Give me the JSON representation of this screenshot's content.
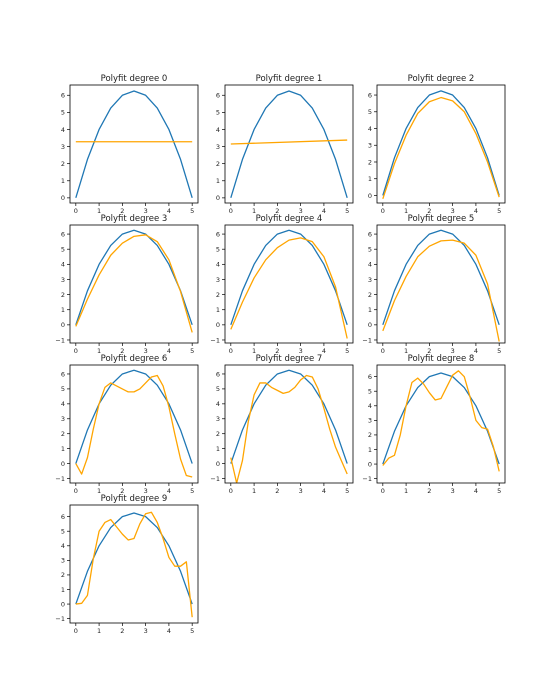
{
  "figure": {
    "line_colors": {
      "true": "#1f77b4",
      "fit": "#ffa500"
    }
  },
  "chart_data": [
    {
      "type": "line",
      "title": "Polyfit degree 0",
      "xticks": [
        "0",
        "1",
        "2",
        "3",
        "4",
        "5"
      ],
      "yticks": [
        "0",
        "1",
        "2",
        "3",
        "4",
        "5",
        "6"
      ],
      "xlim": [
        -0.25,
        5.25
      ],
      "ylim": [
        -0.3,
        6.6
      ],
      "series": [
        {
          "role": "true",
          "x": [
            0,
            0.5,
            1,
            1.5,
            2,
            2.5,
            3,
            3.5,
            4,
            4.5,
            5
          ],
          "y": [
            0,
            2.25,
            4,
            5.25,
            6,
            6.25,
            6,
            5.25,
            4,
            2.25,
            0
          ]
        },
        {
          "role": "fit",
          "x": [
            0,
            5
          ],
          "y": [
            3.28,
            3.28
          ]
        }
      ]
    },
    {
      "type": "line",
      "title": "Polyfit degree 1",
      "xticks": [
        "0",
        "1",
        "2",
        "3",
        "4",
        "5"
      ],
      "yticks": [
        "0",
        "1",
        "2",
        "3",
        "4",
        "5",
        "6"
      ],
      "xlim": [
        -0.25,
        5.25
      ],
      "ylim": [
        -0.3,
        6.6
      ],
      "series": [
        {
          "role": "true",
          "x": [
            0,
            0.5,
            1,
            1.5,
            2,
            2.5,
            3,
            3.5,
            4,
            4.5,
            5
          ],
          "y": [
            0,
            2.25,
            4,
            5.25,
            6,
            6.25,
            6,
            5.25,
            4,
            2.25,
            0
          ]
        },
        {
          "role": "fit",
          "x": [
            0,
            5
          ],
          "y": [
            3.15,
            3.38
          ]
        }
      ]
    },
    {
      "type": "line",
      "title": "Polyfit degree 2",
      "xticks": [
        "0",
        "1",
        "2",
        "3",
        "4",
        "5"
      ],
      "yticks": [
        "0",
        "1",
        "2",
        "3",
        "4",
        "5",
        "6"
      ],
      "xlim": [
        -0.25,
        5.25
      ],
      "ylim": [
        -0.45,
        6.6
      ],
      "series": [
        {
          "role": "true",
          "x": [
            0,
            0.5,
            1,
            1.5,
            2,
            2.5,
            3,
            3.5,
            4,
            4.5,
            5
          ],
          "y": [
            0,
            2.25,
            4,
            5.25,
            6,
            6.25,
            6,
            5.25,
            4,
            2.25,
            0
          ]
        },
        {
          "role": "fit",
          "x": [
            0,
            0.5,
            1,
            1.5,
            2,
            2.5,
            3,
            3.5,
            4,
            4.5,
            5
          ],
          "y": [
            -0.2,
            1.9,
            3.6,
            4.9,
            5.6,
            5.85,
            5.65,
            5.0,
            3.7,
            2.0,
            -0.1
          ]
        }
      ]
    },
    {
      "type": "line",
      "title": "Polyfit degree 3",
      "xticks": [
        "0",
        "1",
        "2",
        "3",
        "4",
        "5"
      ],
      "yticks": [
        "-1",
        "0",
        "1",
        "2",
        "3",
        "4",
        "5",
        "6"
      ],
      "xlim": [
        -0.25,
        5.25
      ],
      "ylim": [
        -1.2,
        6.6
      ],
      "series": [
        {
          "role": "true",
          "x": [
            0,
            0.5,
            1,
            1.5,
            2,
            2.5,
            3,
            3.5,
            4,
            4.5,
            5
          ],
          "y": [
            0,
            2.25,
            4,
            5.25,
            6,
            6.25,
            6,
            5.25,
            4,
            2.25,
            0
          ]
        },
        {
          "role": "fit",
          "x": [
            0,
            0.5,
            1,
            1.5,
            2,
            2.5,
            3,
            3.5,
            4,
            4.5,
            5
          ],
          "y": [
            -0.1,
            1.7,
            3.3,
            4.6,
            5.4,
            5.85,
            5.95,
            5.5,
            4.3,
            2.2,
            -0.5
          ]
        }
      ]
    },
    {
      "type": "line",
      "title": "Polyfit degree 4",
      "xticks": [
        "0",
        "1",
        "2",
        "3",
        "4",
        "5"
      ],
      "yticks": [
        "-1",
        "0",
        "1",
        "2",
        "3",
        "4",
        "5",
        "6"
      ],
      "xlim": [
        -0.25,
        5.25
      ],
      "ylim": [
        -1.2,
        6.6
      ],
      "series": [
        {
          "role": "true",
          "x": [
            0,
            0.5,
            1,
            1.5,
            2,
            2.5,
            3,
            3.5,
            4,
            4.5,
            5
          ],
          "y": [
            0,
            2.25,
            4,
            5.25,
            6,
            6.25,
            6,
            5.25,
            4,
            2.25,
            0
          ]
        },
        {
          "role": "fit",
          "x": [
            0,
            0.5,
            1,
            1.5,
            2,
            2.5,
            3,
            3.5,
            4,
            4.5,
            5
          ],
          "y": [
            -0.3,
            1.5,
            3.1,
            4.3,
            5.1,
            5.6,
            5.75,
            5.5,
            4.5,
            2.5,
            -0.9
          ]
        }
      ]
    },
    {
      "type": "line",
      "title": "Polyfit degree 5",
      "xticks": [
        "0",
        "1",
        "2",
        "3",
        "4",
        "5"
      ],
      "yticks": [
        "-1",
        "0",
        "1",
        "2",
        "3",
        "4",
        "5",
        "6"
      ],
      "xlim": [
        -0.25,
        5.25
      ],
      "ylim": [
        -1.2,
        6.6
      ],
      "series": [
        {
          "role": "true",
          "x": [
            0,
            0.5,
            1,
            1.5,
            2,
            2.5,
            3,
            3.5,
            4,
            4.5,
            5
          ],
          "y": [
            0,
            2.25,
            4,
            5.25,
            6,
            6.25,
            6,
            5.25,
            4,
            2.25,
            0
          ]
        },
        {
          "role": "fit",
          "x": [
            0,
            0.5,
            1,
            1.5,
            2,
            2.5,
            3,
            3.5,
            4,
            4.5,
            5
          ],
          "y": [
            -0.4,
            1.6,
            3.2,
            4.5,
            5.2,
            5.55,
            5.6,
            5.4,
            4.6,
            2.7,
            -1.1
          ]
        }
      ]
    },
    {
      "type": "line",
      "title": "Polyfit degree 6",
      "xticks": [
        "0",
        "1",
        "2",
        "3",
        "4",
        "5"
      ],
      "yticks": [
        "-1",
        "0",
        "1",
        "2",
        "3",
        "4",
        "5",
        "6"
      ],
      "xlim": [
        -0.25,
        5.25
      ],
      "ylim": [
        -1.3,
        6.6
      ],
      "series": [
        {
          "role": "true",
          "x": [
            0,
            0.5,
            1,
            1.5,
            2,
            2.5,
            3,
            3.5,
            4,
            4.5,
            5
          ],
          "y": [
            0,
            2.25,
            4,
            5.25,
            6,
            6.25,
            6,
            5.25,
            4,
            2.25,
            0
          ]
        },
        {
          "role": "fit",
          "x": [
            0,
            0.25,
            0.5,
            0.75,
            1,
            1.25,
            1.5,
            1.75,
            2,
            2.25,
            2.5,
            2.75,
            3,
            3.25,
            3.5,
            3.75,
            4,
            4.25,
            4.5,
            4.75,
            5
          ],
          "y": [
            0,
            -0.7,
            0.4,
            2.3,
            4.0,
            5.1,
            5.4,
            5.2,
            5.0,
            4.8,
            4.8,
            5.0,
            5.4,
            5.8,
            5.9,
            5.2,
            3.8,
            2.0,
            0.3,
            -0.8,
            -0.9
          ]
        }
      ]
    },
    {
      "type": "line",
      "title": "Polyfit degree 7",
      "xticks": [
        "0",
        "1",
        "2",
        "3",
        "4",
        "5"
      ],
      "yticks": [
        "-1",
        "0",
        "1",
        "2",
        "3",
        "4",
        "5",
        "6"
      ],
      "xlim": [
        -0.25,
        5.25
      ],
      "ylim": [
        -1.3,
        6.6
      ],
      "series": [
        {
          "role": "true",
          "x": [
            0,
            0.5,
            1,
            1.5,
            2,
            2.5,
            3,
            3.5,
            4,
            4.5,
            5
          ],
          "y": [
            0,
            2.25,
            4,
            5.25,
            6,
            6.25,
            6,
            5.25,
            4,
            2.25,
            0
          ]
        },
        {
          "role": "fit",
          "x": [
            0,
            0.25,
            0.5,
            0.75,
            1,
            1.25,
            1.5,
            1.75,
            2,
            2.25,
            2.5,
            2.75,
            3,
            3.25,
            3.5,
            3.75,
            4,
            4.25,
            4.5,
            4.75,
            5
          ],
          "y": [
            0.4,
            -1.3,
            0.2,
            2.8,
            4.6,
            5.4,
            5.4,
            5.1,
            4.9,
            4.7,
            4.8,
            5.1,
            5.6,
            5.9,
            5.8,
            5.0,
            3.7,
            2.3,
            1.1,
            0.2,
            -0.7
          ]
        }
      ]
    },
    {
      "type": "line",
      "title": "Polyfit degree 8",
      "xticks": [
        "0",
        "1",
        "2",
        "3",
        "4",
        "5"
      ],
      "yticks": [
        "-1",
        "0",
        "1",
        "2",
        "3",
        "4",
        "5",
        "6"
      ],
      "xlim": [
        -0.25,
        5.25
      ],
      "ylim": [
        -1.3,
        6.8
      ],
      "series": [
        {
          "role": "true",
          "x": [
            0,
            0.5,
            1,
            1.5,
            2,
            2.5,
            3,
            3.5,
            4,
            4.5,
            5
          ],
          "y": [
            0,
            2.25,
            4,
            5.25,
            6,
            6.25,
            6,
            5.25,
            4,
            2.25,
            0
          ]
        },
        {
          "role": "fit",
          "x": [
            0,
            0.25,
            0.5,
            0.75,
            1,
            1.25,
            1.5,
            1.75,
            2,
            2.25,
            2.5,
            2.75,
            3,
            3.25,
            3.5,
            3.75,
            4,
            4.25,
            4.5,
            4.75,
            5
          ],
          "y": [
            -0.1,
            0.4,
            0.6,
            2.0,
            4.0,
            5.6,
            5.9,
            5.5,
            4.9,
            4.4,
            4.5,
            5.3,
            6.1,
            6.4,
            6.0,
            4.6,
            3.0,
            2.5,
            2.4,
            1.2,
            -0.5
          ]
        }
      ]
    },
    {
      "type": "line",
      "title": "Polyfit degree 9",
      "xticks": [
        "0",
        "1",
        "2",
        "3",
        "4",
        "5"
      ],
      "yticks": [
        "-1",
        "0",
        "1",
        "2",
        "3",
        "4",
        "5",
        "6"
      ],
      "xlim": [
        -0.25,
        5.25
      ],
      "ylim": [
        -1.3,
        6.8
      ],
      "series": [
        {
          "role": "true",
          "x": [
            0,
            0.5,
            1,
            1.5,
            2,
            2.5,
            3,
            3.5,
            4,
            4.5,
            5
          ],
          "y": [
            0,
            2.25,
            4,
            5.25,
            6,
            6.25,
            6,
            5.25,
            4,
            2.25,
            0
          ]
        },
        {
          "role": "fit",
          "x": [
            0,
            0.25,
            0.5,
            0.75,
            1,
            1.25,
            1.5,
            1.75,
            2,
            2.25,
            2.5,
            2.75,
            3,
            3.25,
            3.5,
            3.75,
            4,
            4.25,
            4.5,
            4.75,
            5
          ],
          "y": [
            0,
            0.05,
            0.6,
            3.1,
            5.0,
            5.6,
            5.8,
            5.3,
            4.8,
            4.4,
            4.5,
            5.5,
            6.2,
            6.3,
            5.6,
            4.5,
            3.2,
            2.6,
            2.6,
            2.9,
            -0.9
          ]
        }
      ]
    }
  ]
}
